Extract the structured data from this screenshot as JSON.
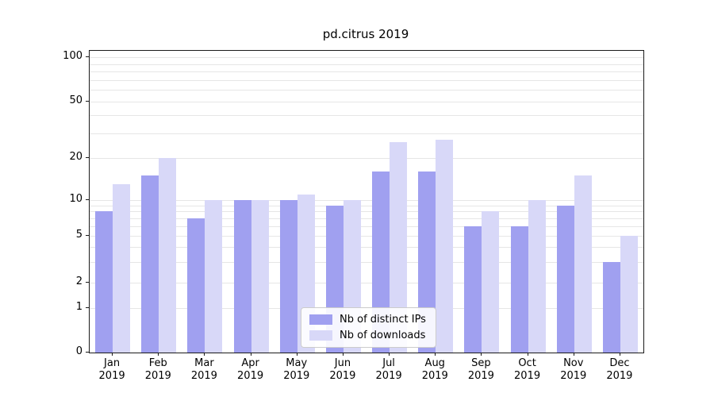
{
  "chart_data": {
    "type": "bar",
    "title": "pd.citrus 2019",
    "categories": [
      "Jan 2019",
      "Feb 2019",
      "Mar 2019",
      "Apr 2019",
      "May 2019",
      "Jun 2019",
      "Jul 2019",
      "Aug 2019",
      "Sep 2019",
      "Oct 2019",
      "Nov 2019",
      "Dec 2019"
    ],
    "series": [
      {
        "name": "Nb of distinct IPs",
        "color": "#a0a0f0",
        "values": [
          8,
          15,
          7,
          10,
          10,
          9,
          16,
          16,
          6,
          6,
          9,
          3
        ]
      },
      {
        "name": "Nb of downloads",
        "color": "#d8d8f8",
        "values": [
          13,
          20,
          10,
          10,
          11,
          10,
          26,
          27,
          8,
          10,
          15,
          5
        ]
      }
    ],
    "yscale": "symlog",
    "ylim": [
      0,
      100
    ],
    "yticks": [
      0,
      1,
      2,
      5,
      10,
      20,
      50,
      100
    ],
    "ytick_labels": [
      "0",
      "1",
      "2",
      "5",
      "10",
      "20",
      "50",
      "100"
    ],
    "gridline_values": [
      1,
      2,
      3,
      4,
      5,
      6,
      7,
      8,
      9,
      10,
      20,
      30,
      40,
      50,
      60,
      70,
      80,
      90,
      100
    ],
    "grid": true,
    "legend_position": "lower center"
  },
  "colors": {
    "grid": "#e6e6e6",
    "axis": "#1a1a1a",
    "background": "#ffffff"
  }
}
